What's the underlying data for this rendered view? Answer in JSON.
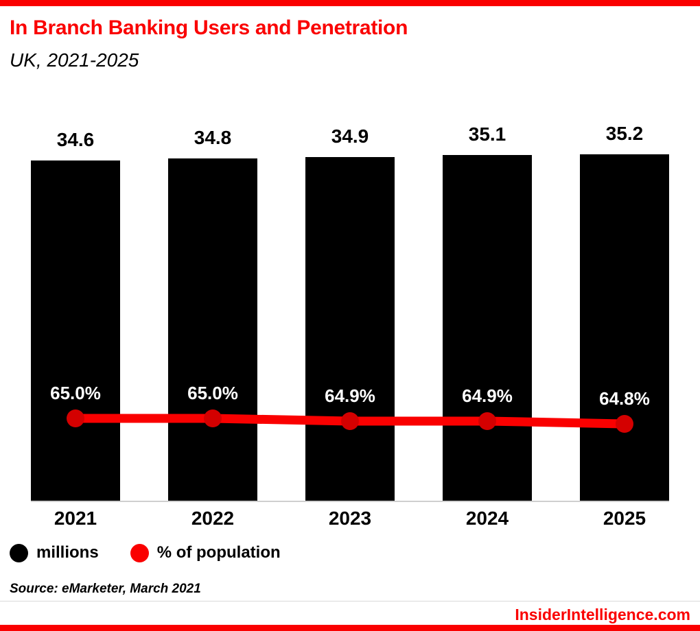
{
  "header": {
    "title": "In Branch Banking Users and Penetration",
    "subtitle": "UK, 2021-2025"
  },
  "chart_data": {
    "type": "bar",
    "title": "In Branch Banking Users and Penetration",
    "subtitle": "UK, 2021-2025",
    "categories": [
      "2021",
      "2022",
      "2023",
      "2024",
      "2025"
    ],
    "series": [
      {
        "name": "millions",
        "type": "bar",
        "color": "#000000",
        "values": [
          34.6,
          34.8,
          34.9,
          35.1,
          35.2
        ],
        "value_labels": [
          "34.6",
          "34.8",
          "34.9",
          "35.1",
          "35.2"
        ]
      },
      {
        "name": "% of population",
        "type": "line",
        "color": "#fa0000",
        "marker_color": "#d40000",
        "values": [
          65.0,
          65.0,
          64.9,
          64.9,
          64.8
        ],
        "value_labels": [
          "65.0%",
          "65.0%",
          "64.9%",
          "64.9%",
          "64.8%"
        ]
      }
    ],
    "xlabel": "",
    "ylabel": "",
    "grid": false,
    "legend_position": "bottom-left"
  },
  "legend": {
    "items": [
      {
        "label": "millions",
        "color": "#000000"
      },
      {
        "label": "% of population",
        "color": "#fa0000"
      }
    ]
  },
  "source": "Source: eMarketer, March 2021",
  "footer": {
    "brand": "InsiderIntelligence.com"
  },
  "colors": {
    "accent": "#fa0000",
    "title": "#fa0000",
    "bar": "#000000",
    "line": "#fa0000",
    "marker": "#d40000"
  }
}
